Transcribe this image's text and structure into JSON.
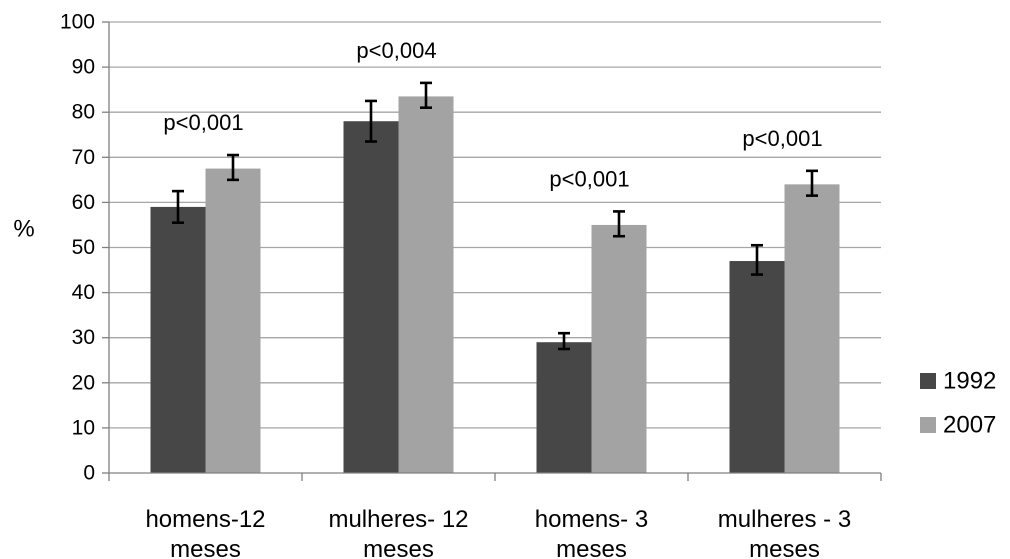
{
  "chart_data": {
    "type": "bar",
    "title": "",
    "xlabel": "",
    "ylabel": "%",
    "ylim": [
      0,
      100
    ],
    "yticks": [
      0,
      10,
      20,
      30,
      40,
      50,
      60,
      70,
      80,
      90,
      100
    ],
    "grid": true,
    "legend_position": "right",
    "categories": [
      [
        "homens-12",
        "meses"
      ],
      [
        "mulheres- 12",
        "meses"
      ],
      [
        "homens- 3",
        "meses"
      ],
      [
        "mulheres - 3",
        "meses"
      ]
    ],
    "series": [
      {
        "name": "1992",
        "color": "#474747",
        "values": [
          59,
          78,
          29,
          47
        ],
        "error_low": [
          55.5,
          73.5,
          27.5,
          44
        ],
        "error_high": [
          62.5,
          82.5,
          31,
          50.5
        ]
      },
      {
        "name": "2007",
        "color": "#a3a3a3",
        "values": [
          67.5,
          83.5,
          55,
          64
        ],
        "error_low": [
          65,
          81,
          52.5,
          61.5
        ],
        "error_high": [
          70.5,
          86.5,
          58,
          67
        ]
      }
    ],
    "annotations": [
      "p<0,001",
      "p<0,004",
      "p<0,001",
      "p<0,001"
    ]
  }
}
